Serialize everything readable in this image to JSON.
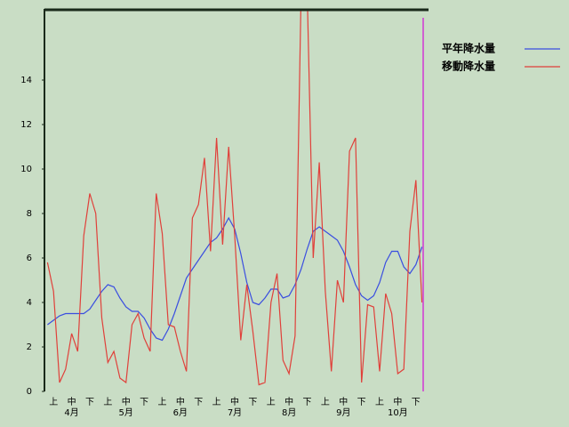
{
  "chart_data": {
    "type": "line",
    "categories": [
      null,
      "上",
      null,
      null,
      "中",
      null,
      null,
      "下",
      null,
      null,
      "上",
      null,
      null,
      "中",
      null,
      null,
      "下",
      null,
      null,
      "上",
      null,
      null,
      "中",
      null,
      null,
      "下",
      null,
      null,
      "上",
      null,
      null,
      "中",
      null,
      null,
      "下",
      null,
      null,
      "上",
      null,
      null,
      "中",
      null,
      null,
      "下",
      null,
      null,
      "上",
      null,
      null,
      "中",
      null,
      null,
      "下",
      null,
      null,
      "上",
      null,
      null,
      "中",
      null,
      null,
      "下",
      null
    ],
    "month_labels": [
      "4月",
      "5月",
      "6月",
      "7月",
      "8月",
      "9月",
      "10月"
    ],
    "ylim": [
      0,
      17.2
    ],
    "yticks": [
      0,
      2,
      4,
      6,
      8,
      10,
      12,
      14
    ],
    "series": [
      {
        "name": "平年降水量",
        "color": "#3a4ee0",
        "values": [
          3.0,
          3.2,
          3.4,
          3.5,
          3.5,
          3.5,
          3.5,
          3.7,
          4.1,
          4.5,
          4.8,
          4.7,
          4.2,
          3.8,
          3.6,
          3.6,
          3.3,
          2.8,
          2.4,
          2.3,
          2.8,
          3.5,
          4.3,
          5.1,
          5.5,
          5.9,
          6.3,
          6.7,
          6.9,
          7.3,
          7.8,
          7.3,
          6.2,
          4.9,
          4.0,
          3.9,
          4.2,
          4.6,
          4.6,
          4.2,
          4.3,
          4.8,
          5.5,
          6.4,
          7.2,
          7.4,
          7.2,
          7.0,
          6.8,
          6.3,
          5.6,
          4.8,
          4.3,
          4.1,
          4.3,
          4.9,
          5.8,
          6.3,
          6.3,
          5.6,
          5.3,
          5.7,
          6.5
        ]
      },
      {
        "name": "移動降水量",
        "color": "#e0403a",
        "values": [
          5.8,
          4.5,
          0.4,
          1.0,
          2.6,
          1.8,
          7.0,
          8.9,
          8.0,
          3.3,
          1.3,
          1.8,
          0.6,
          0.4,
          3.0,
          3.5,
          2.4,
          1.8,
          8.9,
          7.1,
          3.0,
          2.9,
          1.8,
          0.9,
          7.8,
          8.4,
          10.5,
          6.3,
          11.4,
          6.6,
          11.0,
          7.0,
          2.3,
          4.8,
          2.7,
          0.3,
          0.4,
          4.0,
          5.3,
          1.4,
          0.8,
          2.5,
          18,
          18,
          6.0,
          10.3,
          4.5,
          0.9,
          5.0,
          4.0,
          10.8,
          11.4,
          0.4,
          3.9,
          3.8,
          0.9,
          4.4,
          3.5,
          0.8,
          1.0,
          7.2,
          9.5,
          4.0
        ]
      }
    ]
  }
}
